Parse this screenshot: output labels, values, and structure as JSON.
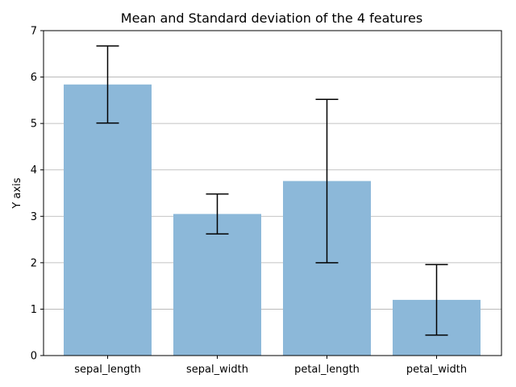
{
  "chart_data": {
    "type": "bar",
    "title": "Mean and Standard deviation of the 4 features",
    "xlabel": "",
    "ylabel": "Y axis",
    "categories": [
      "sepal_length",
      "sepal_width",
      "petal_length",
      "petal_width"
    ],
    "values": [
      5.84,
      3.05,
      3.76,
      1.2
    ],
    "errors": [
      0.83,
      0.43,
      1.76,
      0.76
    ],
    "ylim": [
      0,
      7
    ],
    "yticks": [
      "0",
      "1",
      "2",
      "3",
      "4",
      "5",
      "6",
      "7"
    ],
    "grid": "horizontal",
    "bar_color": "#8cb8d9"
  }
}
